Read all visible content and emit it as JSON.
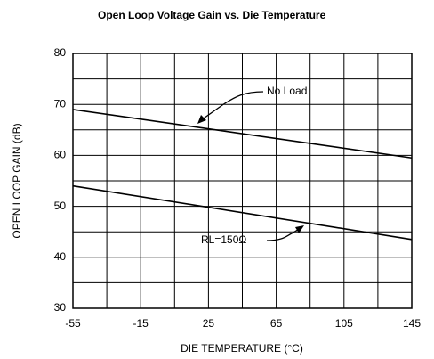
{
  "chart_data": {
    "type": "line",
    "title": "Open Loop Voltage Gain vs. Die Temperature",
    "xlabel": "DIE TEMPERATURE (°C)",
    "ylabel": "OPEN LOOP GAIN (dB)",
    "x": [
      -55,
      145
    ],
    "series": [
      {
        "name": "No Load",
        "color": "#000000",
        "values": [
          69,
          59.5
        ]
      },
      {
        "name": "RL=150Ω",
        "color": "#000000",
        "values": [
          54,
          43.5
        ]
      }
    ],
    "xlim": [
      -55,
      145
    ],
    "xticks": [
      -55,
      -15,
      25,
      65,
      105,
      145
    ],
    "xgrid": [
      -55,
      -35,
      -15,
      5,
      25,
      45,
      65,
      85,
      105,
      125,
      145
    ],
    "ylim": [
      30,
      80
    ],
    "yticks": [
      30,
      40,
      50,
      60,
      70,
      80
    ],
    "ygrid": [
      30,
      35,
      40,
      45,
      50,
      55,
      60,
      65,
      70,
      75,
      80
    ],
    "grid": true
  }
}
